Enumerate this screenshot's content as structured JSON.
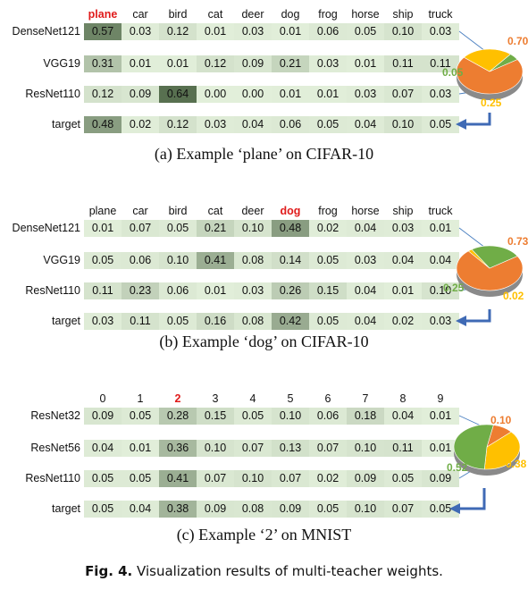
{
  "panels": [
    {
      "columns": [
        "plane",
        "car",
        "bird",
        "cat",
        "deer",
        "dog",
        "frog",
        "horse",
        "ship",
        "truck"
      ],
      "highlight_col": 0,
      "rows": [
        {
          "label": "DenseNet121",
          "values": [
            "0.57",
            "0.03",
            "0.12",
            "0.01",
            "0.03",
            "0.01",
            "0.06",
            "0.05",
            "0.10",
            "0.03"
          ]
        },
        {
          "label": "VGG19",
          "values": [
            "0.31",
            "0.01",
            "0.01",
            "0.12",
            "0.09",
            "0.21",
            "0.03",
            "0.01",
            "0.11",
            "0.11"
          ]
        },
        {
          "label": "ResNet110",
          "values": [
            "0.12",
            "0.09",
            "0.64",
            "0.00",
            "0.00",
            "0.01",
            "0.01",
            "0.03",
            "0.07",
            "0.03"
          ]
        },
        {
          "label": "target",
          "values": [
            "0.48",
            "0.02",
            "0.12",
            "0.03",
            "0.04",
            "0.06",
            "0.05",
            "0.04",
            "0.10",
            "0.05"
          ]
        }
      ],
      "pie": {
        "values": [
          0.7,
          0.25,
          0.05
        ],
        "labels": [
          "0.70",
          "0.25",
          "0.05"
        ],
        "colors": [
          "#ed7d31",
          "#ffc000",
          "#70ad47"
        ]
      },
      "caption": "(a)  Example ‘plane’ on CIFAR-10"
    },
    {
      "columns": [
        "plane",
        "car",
        "bird",
        "cat",
        "deer",
        "dog",
        "frog",
        "horse",
        "ship",
        "truck"
      ],
      "highlight_col": 5,
      "rows": [
        {
          "label": "DenseNet121",
          "values": [
            "0.01",
            "0.07",
            "0.05",
            "0.21",
            "0.10",
            "0.48",
            "0.02",
            "0.04",
            "0.03",
            "0.01"
          ]
        },
        {
          "label": "VGG19",
          "values": [
            "0.05",
            "0.06",
            "0.10",
            "0.41",
            "0.08",
            "0.14",
            "0.05",
            "0.03",
            "0.04",
            "0.04"
          ]
        },
        {
          "label": "ResNet110",
          "values": [
            "0.11",
            "0.23",
            "0.06",
            "0.01",
            "0.03",
            "0.26",
            "0.15",
            "0.04",
            "0.01",
            "0.10"
          ]
        },
        {
          "label": "target",
          "values": [
            "0.03",
            "0.11",
            "0.05",
            "0.16",
            "0.08",
            "0.42",
            "0.05",
            "0.04",
            "0.02",
            "0.03"
          ]
        }
      ],
      "pie": {
        "values": [
          0.73,
          0.02,
          0.25
        ],
        "labels": [
          "0.73",
          "0.02",
          "0.25"
        ],
        "colors": [
          "#ed7d31",
          "#ffc000",
          "#70ad47"
        ]
      },
      "caption": "(b)  Example ‘dog’ on CIFAR-10"
    },
    {
      "columns": [
        "0",
        "1",
        "2",
        "3",
        "4",
        "5",
        "6",
        "7",
        "8",
        "9"
      ],
      "highlight_col": 2,
      "rows": [
        {
          "label": "ResNet32",
          "values": [
            "0.09",
            "0.05",
            "0.28",
            "0.15",
            "0.05",
            "0.10",
            "0.06",
            "0.18",
            "0.04",
            "0.01"
          ]
        },
        {
          "label": "ResNet56",
          "values": [
            "0.04",
            "0.01",
            "0.36",
            "0.10",
            "0.07",
            "0.13",
            "0.07",
            "0.10",
            "0.11",
            "0.01"
          ]
        },
        {
          "label": "ResNet110",
          "values": [
            "0.05",
            "0.05",
            "0.41",
            "0.07",
            "0.10",
            "0.07",
            "0.02",
            "0.09",
            "0.05",
            "0.09"
          ]
        },
        {
          "label": "target",
          "values": [
            "0.05",
            "0.04",
            "0.38",
            "0.09",
            "0.08",
            "0.09",
            "0.05",
            "0.10",
            "0.07",
            "0.05"
          ]
        }
      ],
      "pie": {
        "values": [
          0.1,
          0.38,
          0.52
        ],
        "labels": [
          "0.10",
          "0.38",
          "0.52"
        ],
        "colors": [
          "#ed7d31",
          "#ffc000",
          "#70ad47"
        ]
      },
      "caption": "(c)  Example ‘2’ on MNIST"
    }
  ],
  "figure_caption": {
    "label": "Fig. 4.",
    "text": "Visualization results of multi-teacher weights."
  }
}
